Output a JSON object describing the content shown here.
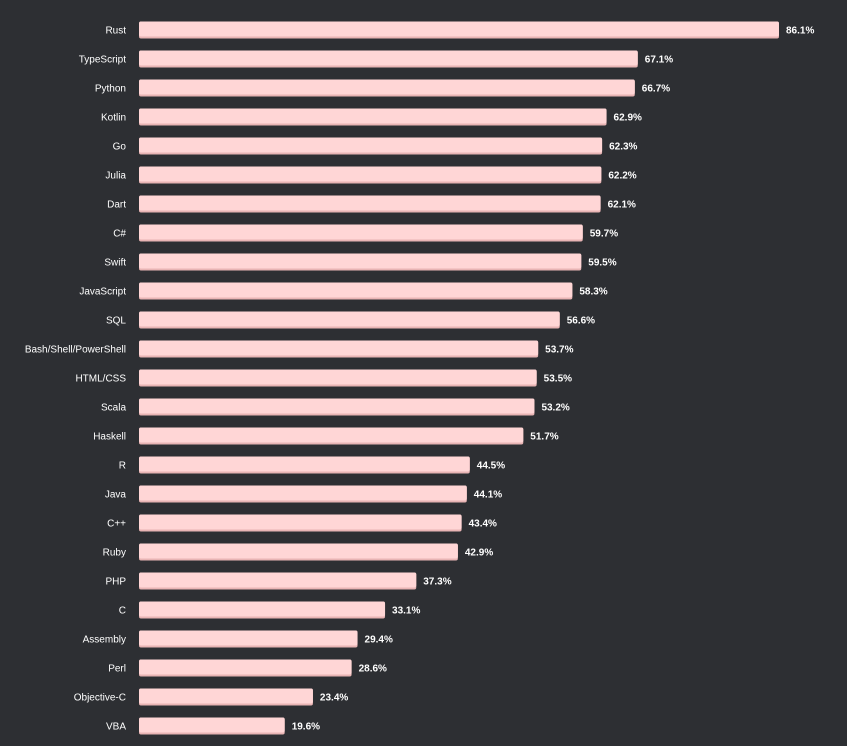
{
  "chart_data": {
    "type": "bar",
    "orientation": "horizontal",
    "categories": [
      "Rust",
      "TypeScript",
      "Python",
      "Kotlin",
      "Go",
      "Julia",
      "Dart",
      "C#",
      "Swift",
      "JavaScript",
      "SQL",
      "Bash/Shell/PowerShell",
      "HTML/CSS",
      "Scala",
      "Haskell",
      "R",
      "Java",
      "C++",
      "Ruby",
      "PHP",
      "C",
      "Assembly",
      "Perl",
      "Objective-C",
      "VBA"
    ],
    "values": [
      86.1,
      67.1,
      66.7,
      62.9,
      62.3,
      62.2,
      62.1,
      59.7,
      59.5,
      58.3,
      56.6,
      53.7,
      53.5,
      53.2,
      51.7,
      44.5,
      44.1,
      43.4,
      42.9,
      37.3,
      33.1,
      29.4,
      28.6,
      23.4,
      19.6
    ],
    "value_suffix": "%",
    "xlim": [
      0,
      86.1
    ],
    "grid": false,
    "legend": "none",
    "colors": {
      "background": "#2d2f33",
      "bar": "#ffd6d6",
      "bar_shadow": "#e8b4b4",
      "text": "#ffffff"
    }
  }
}
